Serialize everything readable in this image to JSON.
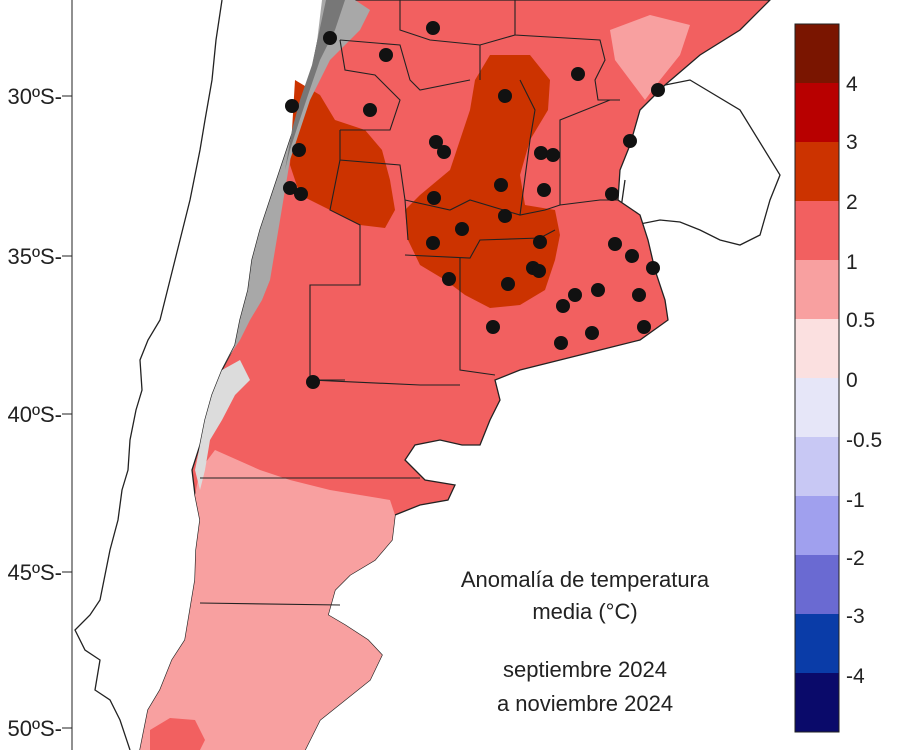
{
  "latitude_labels": [
    "30ºS-",
    "35ºS-",
    "40ºS-",
    "45ºS-",
    "50ºS-"
  ],
  "caption": {
    "line1": "Anomalía de temperatura",
    "line2": "media (°C)",
    "line3": "septiembre 2024",
    "line4": "a noviembre 2024"
  },
  "colorbar": {
    "labels": [
      "4",
      "3",
      "2",
      "1",
      "0.5",
      "0",
      "-0.5",
      "-1",
      "-2",
      "-3",
      "-4"
    ],
    "colors": [
      "#7a1500",
      "#b80000",
      "#cc3300",
      "#f26060",
      "#f8a0a0",
      "#fbe0e0",
      "#e6e6f8",
      "#c8c8f4",
      "#a0a0ee",
      "#6a6ad2",
      "#0a3ca8",
      "#0a0a6a"
    ]
  },
  "map_colors": {
    "anomaly_0_5_to_1": "#f8a0a0",
    "anomaly_1_to_2": "#f26060",
    "anomaly_2_to_3": "#cc3300",
    "andes_relief": "#a8a8a8",
    "border": "#222222",
    "station": "#111111"
  }
}
